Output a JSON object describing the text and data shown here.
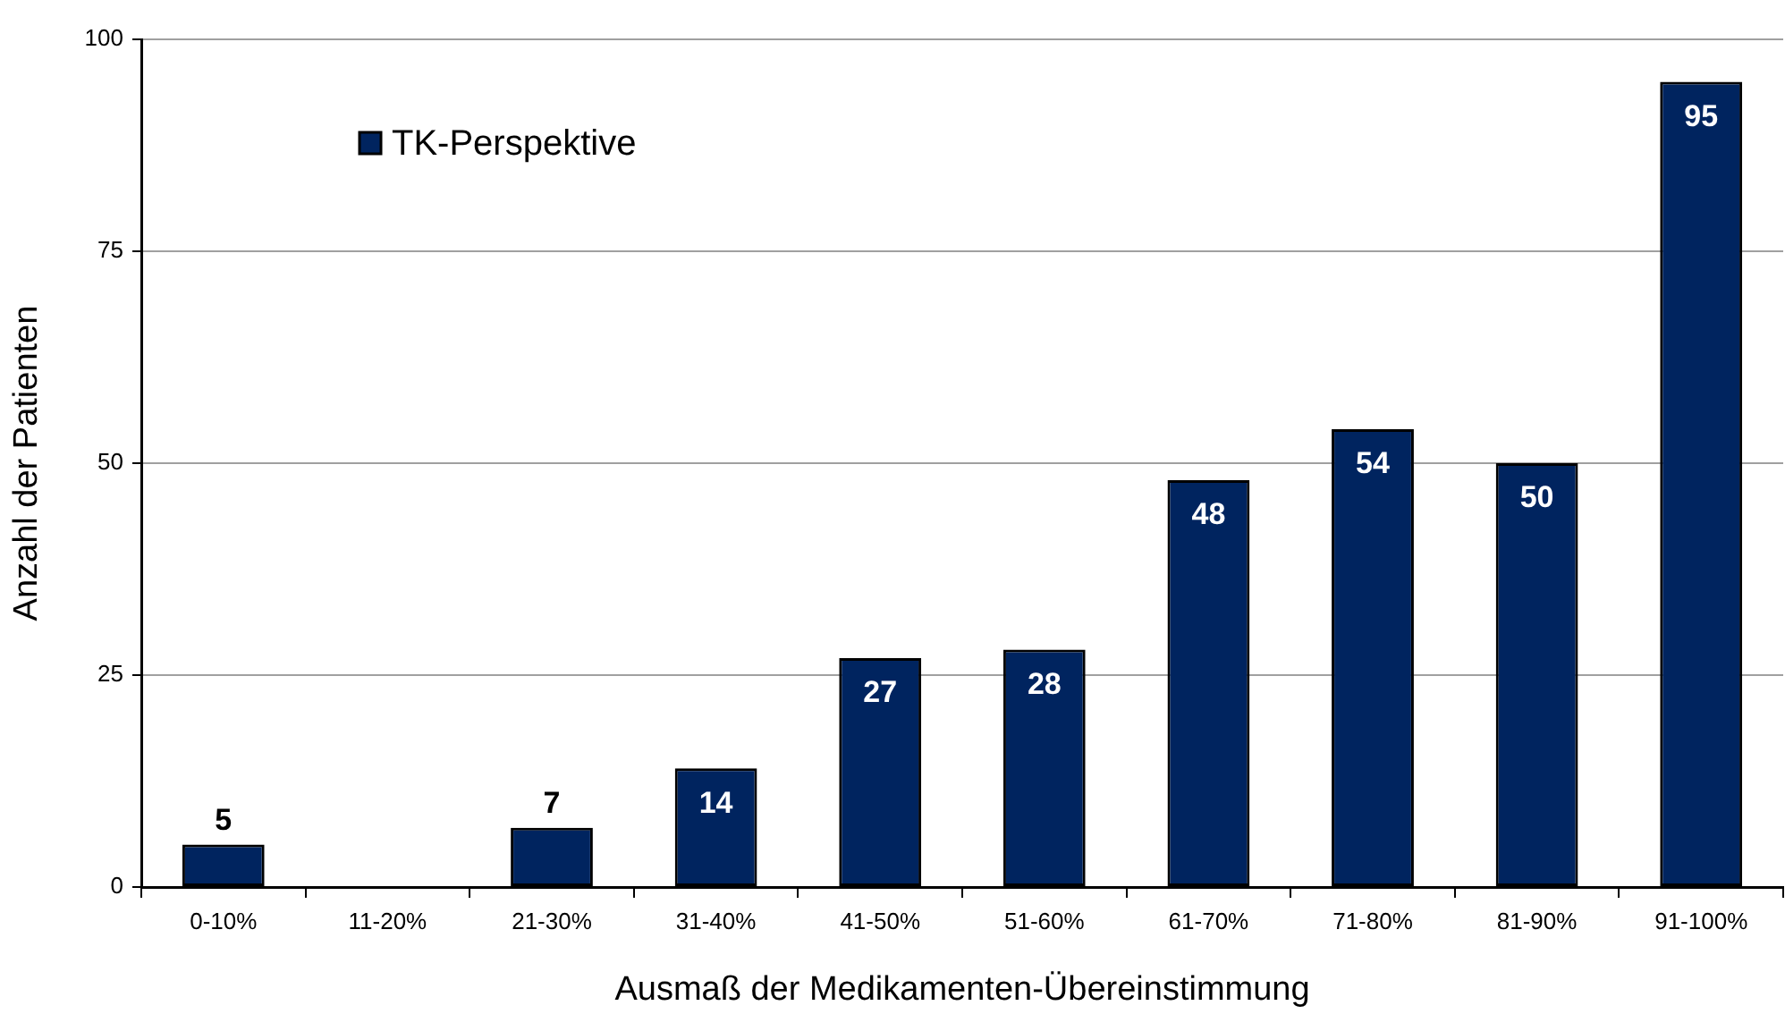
{
  "chart_data": {
    "type": "bar",
    "xlabel": "Ausmaß der Medikamenten-Übereinstimmung",
    "ylabel": "Anzahl der Patienten",
    "categories": [
      "0-10%",
      "11-20%",
      "21-30%",
      "31-40%",
      "41-50%",
      "51-60%",
      "61-70%",
      "71-80%",
      "81-90%",
      "91-100%"
    ],
    "series": [
      {
        "name": "TK-Perspektive",
        "color": "#00245f",
        "values": [
          5,
          null,
          7,
          14,
          27,
          28,
          48,
          54,
          50,
          95
        ]
      }
    ],
    "ylim": [
      0,
      100
    ],
    "yticks": [
      0,
      25,
      50,
      75,
      100
    ],
    "grid": "y",
    "legend": "top left",
    "data_labels": true
  }
}
